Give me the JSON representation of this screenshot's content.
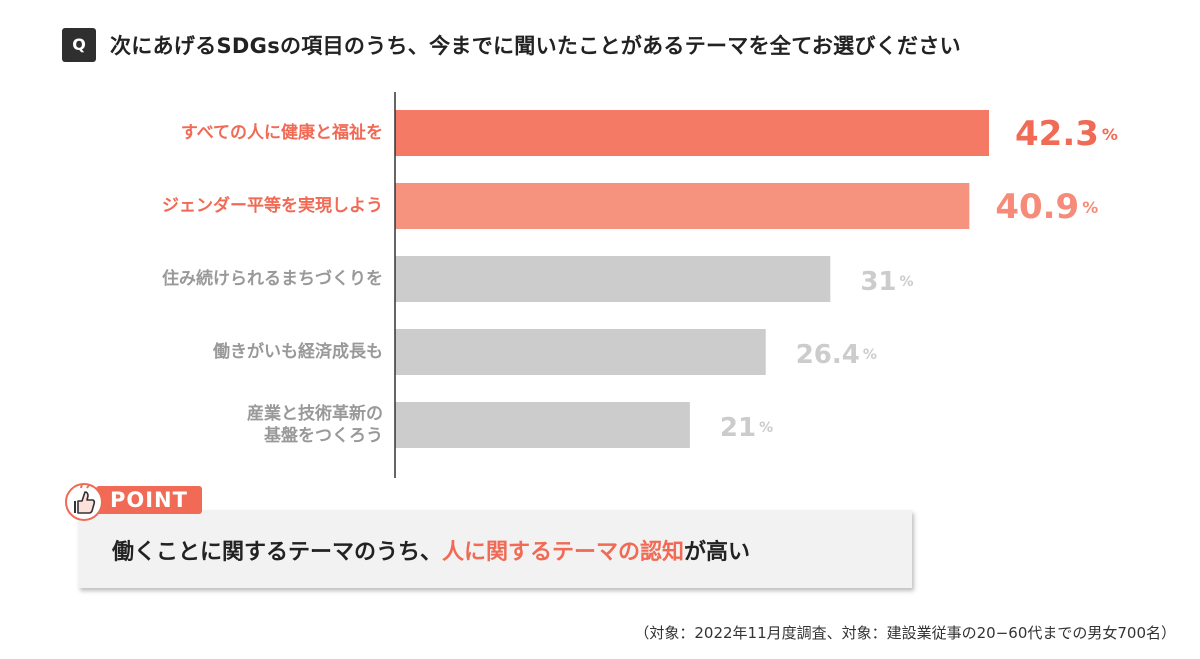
{
  "question": {
    "badge": "Q",
    "text": "次にあげるSDGsの項目のうち、今までに聞いたことがあるテーマを全てお選びください"
  },
  "chart_data": {
    "type": "bar",
    "orientation": "horizontal",
    "categories": [
      [
        "すべての人に健康と福祉を"
      ],
      [
        "ジェンダー平等を実現しよう"
      ],
      [
        "住み続けられるまちづくりを"
      ],
      [
        "働きがいも経済成長も"
      ],
      [
        "産業と技術革新の",
        "基盤をつくろう"
      ]
    ],
    "values": [
      42.3,
      40.9,
      31,
      26.4,
      21
    ],
    "value_labels": [
      "42.3",
      "40.9",
      "31",
      "26.4",
      "21"
    ],
    "unit": "%",
    "title": "",
    "xlabel": "",
    "ylabel": "",
    "xlim": [
      0,
      42.3
    ],
    "grid": false,
    "colors": {
      "bars": [
        "#f57a66",
        "#f6937f",
        "#cccccc",
        "#cccccc",
        "#cccccc"
      ],
      "labels": [
        "#f06a55",
        "#f06a55",
        "#999999",
        "#999999",
        "#999999"
      ],
      "values": [
        "#f06a55",
        "#f58b78",
        "#cccccc",
        "#cccccc",
        "#cccccc"
      ]
    }
  },
  "point": {
    "badge": "POINT",
    "icon": "thumbs-up-hand-icon",
    "text_before": "働くことに関するテーマのうち、",
    "text_highlight": "人に関するテーマの認知",
    "text_after": "が高い",
    "highlight_color": "#f06a55"
  },
  "footnote": "（対象：2022年11月度調査、対象：建設業従事の20−60代までの男女700名）"
}
